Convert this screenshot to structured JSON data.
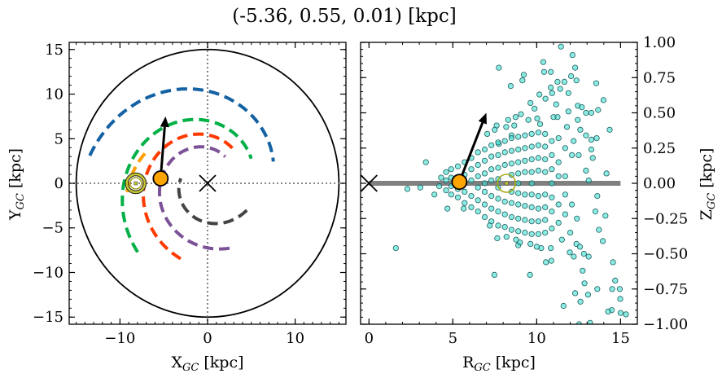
{
  "title": "(-5.36, 0.55, 0.01) [kpc]",
  "chart_data": [
    {
      "type": "line",
      "panel": "XY plane (top view)",
      "xlabel": {
        "main": "X",
        "sub": "GC",
        "unit": " [kpc]"
      },
      "ylabel": {
        "main": "Y",
        "sub": "GC",
        "unit": " [kpc]"
      },
      "xlim": [
        -15.8,
        15.8
      ],
      "ylim": [
        -15.8,
        15.8
      ],
      "xticks": [
        {
          "v": -10,
          "label": "−10"
        },
        {
          "v": 0,
          "label": "0"
        },
        {
          "v": 10,
          "label": "10"
        }
      ],
      "yticks": [
        {
          "v": 15,
          "label": "15"
        },
        {
          "v": 10,
          "label": "10"
        },
        {
          "v": 5,
          "label": "5"
        },
        {
          "v": 0,
          "label": "0"
        },
        {
          "v": -5,
          "label": "−5"
        },
        {
          "v": -10,
          "label": "−10"
        },
        {
          "v": -15,
          "label": "−15"
        }
      ],
      "grid": false,
      "reference_lines": {
        "x": 0,
        "y": 0,
        "style": "dotted"
      },
      "boundary_circle_radius": 15,
      "spiral_arms": [
        {
          "color": "#1461a3",
          "angle_start_deg": 167,
          "angle_end_deg": 18,
          "r_start": 13.8,
          "r_end": 7.9
        },
        {
          "color": "#00b046",
          "angle_start_deg": 224,
          "angle_end_deg": 29,
          "r_start": 11.1,
          "r_end": 5.7
        },
        {
          "color": "#ff3a00",
          "angle_start_deg": 250,
          "angle_end_deg": 51,
          "r_start": 9.0,
          "r_end": 4.8
        },
        {
          "color": "#7b5197",
          "angle_start_deg": 289,
          "angle_end_deg": 56,
          "r_start": 7.7,
          "r_end": 3.6
        },
        {
          "color": "#444444",
          "angle_start_deg": 326,
          "angle_end_deg": 170,
          "r_start": 5.4,
          "r_end": 3.1
        },
        {
          "color": "#ffa000",
          "angle_start_deg": 155,
          "angle_end_deg": 187,
          "r_start": 7.9,
          "r_end": 9.3
        }
      ],
      "galactic_center": [
        0,
        0
      ],
      "sun": [
        -8.2,
        0
      ],
      "object": {
        "x": -5.36,
        "y": 0.55,
        "color": "#ffa500"
      },
      "velocity_arrow_tip": [
        -4.8,
        7.5
      ]
    },
    {
      "type": "scatter",
      "panel": "R-Z plane (side view)",
      "xlabel": {
        "main": "R",
        "sub": "GC",
        "unit": " [kpc]"
      },
      "ylabel": {
        "main": "Z",
        "sub": "GC",
        "unit": " [kpc]"
      },
      "xlim": [
        -0.5,
        16.0
      ],
      "ylim": [
        -1.0,
        1.0
      ],
      "xticks": [
        {
          "v": 0,
          "label": "0"
        },
        {
          "v": 5,
          "label": "5"
        },
        {
          "v": 10,
          "label": "10"
        },
        {
          "v": 15,
          "label": "15"
        }
      ],
      "yticks": [
        {
          "v": 1,
          "label": "1.00"
        },
        {
          "v": 0.75,
          "label": "0.75"
        },
        {
          "v": 0.5,
          "label": "0.50"
        },
        {
          "v": 0.25,
          "label": "0.25"
        },
        {
          "v": 0,
          "label": "0.00"
        },
        {
          "v": -0.25,
          "label": "−0.25"
        },
        {
          "v": -0.5,
          "label": "−0.50"
        },
        {
          "v": -0.75,
          "label": "−0.75"
        },
        {
          "v": -1,
          "label": "−1.00"
        }
      ],
      "yaxis_side": "right",
      "grid": false,
      "disk_line": {
        "r_start": 0,
        "r_end": 15,
        "z": 0,
        "color": "#808080"
      },
      "galactic_center": [
        0,
        0
      ],
      "sun": [
        8.2,
        0
      ],
      "object": {
        "r": 5.39,
        "z": 0.01,
        "color": "#ffa500"
      },
      "velocity_arrow_tip": [
        7.0,
        0.5
      ],
      "marker_color": "#40e0d0",
      "points": [
        [
          11.45,
          0.97
        ],
        [
          12.13,
          0.91
        ],
        [
          10.39,
          0.86
        ],
        [
          7.74,
          0.82
        ],
        [
          12.29,
          0.82
        ],
        [
          10.44,
          0.79
        ],
        [
          10.84,
          0.79
        ],
        [
          12.05,
          0.76
        ],
        [
          9.23,
          0.77
        ],
        [
          9.15,
          0.73
        ],
        [
          11.24,
          0.72
        ],
        [
          11.65,
          0.72
        ],
        [
          12.37,
          0.73
        ],
        [
          13.55,
          0.71
        ],
        [
          8.45,
          0.69
        ],
        [
          10.84,
          0.68
        ],
        [
          11.4,
          0.67
        ],
        [
          10.92,
          0.64
        ],
        [
          11.89,
          0.64
        ],
        [
          10.16,
          0.63
        ],
        [
          13.98,
          0.59
        ],
        [
          10.52,
          0.6
        ],
        [
          9.63,
          0.57
        ],
        [
          11.16,
          0.56
        ],
        [
          12.45,
          0.55
        ],
        [
          12.69,
          0.54
        ],
        [
          13.66,
          0.52
        ],
        [
          9.87,
          0.53
        ],
        [
          11.89,
          0.51
        ],
        [
          12.94,
          0.5
        ],
        [
          13.26,
          0.5
        ],
        [
          8.74,
          0.47
        ],
        [
          9.06,
          0.49
        ],
        [
          10.03,
          0.46
        ],
        [
          11.24,
          0.47
        ],
        [
          12.45,
          0.45
        ],
        [
          7.61,
          0.41
        ],
        [
          8.18,
          0.4
        ],
        [
          8.66,
          0.41
        ],
        [
          14.35,
          0.38
        ],
        [
          7.05,
          0.35
        ],
        [
          8.5,
          0.34
        ],
        [
          12.94,
          0.34
        ],
        [
          13.58,
          0.32
        ],
        [
          13.26,
          0.31
        ],
        [
          7.74,
          0.28
        ],
        [
          3.39,
          0.15
        ],
        [
          13.26,
          0.24
        ],
        [
          13.34,
          0.18
        ],
        [
          12.94,
          0.09
        ],
        [
          14.16,
          0.07
        ],
        [
          13.1,
          0.02
        ],
        [
          2.29,
          -0.04
        ],
        [
          3.06,
          -0.03
        ],
        [
          3.9,
          -0.08
        ],
        [
          4.68,
          -0.18
        ],
        [
          5.65,
          -0.18
        ],
        [
          13.61,
          -0.09
        ],
        [
          14.1,
          -0.23
        ],
        [
          13.5,
          -0.2
        ],
        [
          1.6,
          -0.46
        ],
        [
          7.65,
          -0.39
        ],
        [
          8.77,
          -0.4
        ],
        [
          8.9,
          -0.44
        ],
        [
          9.63,
          -0.43
        ],
        [
          10.27,
          -0.46
        ],
        [
          10.84,
          -0.46
        ],
        [
          10.55,
          -0.56
        ],
        [
          10.87,
          -0.55
        ],
        [
          11.97,
          -0.49
        ],
        [
          12.37,
          -0.43
        ],
        [
          12.58,
          -0.45
        ],
        [
          12.21,
          -0.52
        ],
        [
          12.81,
          -0.5
        ],
        [
          13.1,
          -0.52
        ],
        [
          13.94,
          -0.41
        ],
        [
          13.71,
          -0.33
        ],
        [
          14.55,
          -0.56
        ],
        [
          7.48,
          -0.65
        ],
        [
          9.6,
          -0.65
        ],
        [
          12.74,
          -0.62
        ],
        [
          12.85,
          -0.71
        ],
        [
          14.68,
          -0.69
        ],
        [
          13.61,
          -0.75
        ],
        [
          14.5,
          -0.75
        ],
        [
          14.95,
          -0.75
        ],
        [
          12.29,
          -0.78
        ],
        [
          13.06,
          -0.79
        ],
        [
          14.98,
          -0.82
        ],
        [
          12.61,
          -0.84
        ],
        [
          11.6,
          -0.87
        ],
        [
          14.47,
          -0.9
        ],
        [
          14.26,
          -0.91
        ],
        [
          15.0,
          -0.92
        ],
        [
          15.32,
          -0.93
        ],
        [
          12.53,
          -1.0
        ],
        [
          13.18,
          -0.99
        ],
        [
          4.19,
          -0.02
        ],
        [
          4.3,
          0.04
        ],
        [
          4.6,
          0.08
        ],
        [
          4.6,
          -0.05
        ],
        [
          4.6,
          0.02
        ],
        [
          4.9,
          0.1
        ],
        [
          4.9,
          -0.08
        ],
        [
          4.9,
          0.04
        ],
        [
          4.9,
          -0.02
        ],
        [
          5.3,
          0.12
        ],
        [
          5.3,
          -0.1
        ],
        [
          5.3,
          -0.04
        ],
        [
          5.7,
          0.15
        ],
        [
          5.7,
          -0.14
        ],
        [
          5.7,
          0.06
        ],
        [
          5.7,
          -0.06
        ],
        [
          5.7,
          0.0
        ],
        [
          6.1,
          0.18
        ],
        [
          6.1,
          -0.17
        ],
        [
          6.1,
          0.1
        ],
        [
          6.1,
          -0.09
        ],
        [
          6.1,
          0.02
        ],
        [
          6.5,
          0.22
        ],
        [
          6.5,
          -0.2
        ],
        [
          6.5,
          0.13
        ],
        [
          6.5,
          -0.12
        ],
        [
          6.5,
          0.05
        ],
        [
          6.5,
          -0.03
        ],
        [
          6.9,
          0.24
        ],
        [
          6.9,
          -0.24
        ],
        [
          6.9,
          0.16
        ],
        [
          6.9,
          -0.15
        ],
        [
          6.9,
          0.07
        ],
        [
          6.9,
          -0.06
        ],
        [
          6.9,
          0.0
        ],
        [
          7.3,
          0.27
        ],
        [
          7.3,
          -0.27
        ],
        [
          7.3,
          0.19
        ],
        [
          7.3,
          -0.18
        ],
        [
          7.3,
          0.1
        ],
        [
          7.3,
          -0.09
        ],
        [
          7.3,
          0.02
        ],
        [
          7.7,
          0.29
        ],
        [
          7.7,
          -0.3
        ],
        [
          7.7,
          0.2
        ],
        [
          7.7,
          -0.2
        ],
        [
          7.7,
          0.11
        ],
        [
          7.7,
          -0.11
        ],
        [
          7.7,
          0.03
        ],
        [
          7.7,
          -0.03
        ],
        [
          8.1,
          0.3
        ],
        [
          8.1,
          -0.31
        ],
        [
          8.1,
          0.22
        ],
        [
          8.1,
          -0.22
        ],
        [
          8.1,
          0.13
        ],
        [
          8.1,
          -0.13
        ],
        [
          8.5,
          0.32
        ],
        [
          8.5,
          -0.33
        ],
        [
          8.5,
          0.23
        ],
        [
          8.5,
          -0.24
        ],
        [
          8.5,
          0.14
        ],
        [
          8.5,
          -0.14
        ],
        [
          8.5,
          0.06
        ],
        [
          8.5,
          -0.06
        ],
        [
          8.9,
          0.33
        ],
        [
          8.9,
          -0.34
        ],
        [
          8.9,
          0.24
        ],
        [
          8.9,
          -0.25
        ],
        [
          8.9,
          0.15
        ],
        [
          8.9,
          -0.15
        ],
        [
          8.9,
          0.07
        ],
        [
          8.9,
          -0.07
        ],
        [
          8.9,
          0.0
        ],
        [
          9.3,
          0.34
        ],
        [
          9.3,
          -0.35
        ],
        [
          9.3,
          0.25
        ],
        [
          9.3,
          -0.26
        ],
        [
          9.3,
          0.16
        ],
        [
          9.3,
          -0.16
        ],
        [
          9.3,
          0.08
        ],
        [
          9.3,
          -0.08
        ],
        [
          9.7,
          0.35
        ],
        [
          9.7,
          -0.36
        ],
        [
          9.7,
          0.26
        ],
        [
          9.7,
          -0.27
        ],
        [
          9.7,
          0.17
        ],
        [
          9.7,
          -0.17
        ],
        [
          9.7,
          0.08
        ],
        [
          9.7,
          -0.08
        ],
        [
          9.7,
          0.0
        ],
        [
          10.1,
          0.36
        ],
        [
          10.1,
          -0.36
        ],
        [
          10.1,
          0.27
        ],
        [
          10.1,
          -0.27
        ],
        [
          10.1,
          0.18
        ],
        [
          10.1,
          -0.18
        ],
        [
          10.1,
          0.09
        ],
        [
          10.1,
          -0.09
        ],
        [
          10.5,
          0.35
        ],
        [
          10.5,
          -0.35
        ],
        [
          10.5,
          0.26
        ],
        [
          10.5,
          -0.26
        ],
        [
          10.5,
          0.17
        ],
        [
          10.5,
          -0.17
        ],
        [
          10.5,
          0.08
        ],
        [
          10.5,
          -0.08
        ],
        [
          10.9,
          0.3
        ],
        [
          10.9,
          -0.32
        ],
        [
          10.9,
          0.2
        ],
        [
          10.9,
          -0.2
        ],
        [
          10.9,
          0.1
        ],
        [
          10.9,
          -0.1
        ],
        [
          10.9,
          0.0
        ],
        [
          11.3,
          0.32
        ],
        [
          11.3,
          -0.28
        ],
        [
          11.3,
          0.15
        ],
        [
          11.3,
          -0.15
        ],
        [
          11.3,
          0.05
        ],
        [
          11.7,
          0.25
        ],
        [
          11.7,
          -0.22
        ],
        [
          11.7,
          0.05
        ],
        [
          11.7,
          -0.08
        ],
        [
          12.1,
          0.2
        ],
        [
          12.1,
          -0.15
        ],
        [
          7.5,
          0.38
        ],
        [
          8.3,
          0.45
        ],
        [
          9.5,
          0.45
        ],
        [
          10.2,
          0.42
        ],
        [
          11.8,
          0.4
        ],
        [
          12.2,
          0.3
        ],
        [
          12.5,
          0.2
        ],
        [
          12.4,
          -0.25
        ],
        [
          12.0,
          -0.35
        ],
        [
          11.5,
          -0.4
        ],
        [
          10.0,
          -0.45
        ],
        [
          9.0,
          -0.42
        ],
        [
          8.2,
          -0.38
        ],
        [
          7.2,
          -0.3
        ],
        [
          11.0,
          0.47
        ],
        [
          12.6,
          0.38
        ]
      ]
    }
  ]
}
